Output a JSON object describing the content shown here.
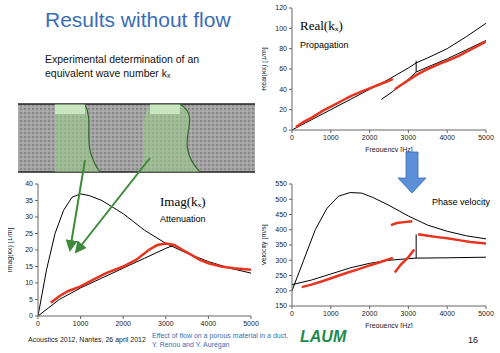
{
  "slide": {
    "title": "Results without flow",
    "subtitle": "Experimental determination of an equivalent wave number kₓ",
    "footer": {
      "event": "Acoustics 2012, Nantes, 26 april 2012",
      "talk": "Effect of flow on a porous material in a duct,",
      "authors": "Y. Renou and Y. Aurégan",
      "logo": "LAUM",
      "page": 16
    }
  },
  "chart_data": [
    {
      "type": "line",
      "title": "Real(kₓ)",
      "annotation": "Propagation",
      "x_label": "Frequency [Hz]",
      "y_label": "Real(kx) [1/m]",
      "xlim": [
        0,
        5000
      ],
      "xticks": [
        0,
        1000,
        2000,
        3000,
        4000,
        5000
      ],
      "ylim": [
        0,
        120
      ],
      "yticks": [
        0,
        20,
        40,
        60,
        80,
        100,
        120
      ],
      "series": [
        {
          "color": "#000000",
          "x": [
            0,
            500,
            1000,
            1500,
            2000,
            2500,
            3000,
            3200,
            3500,
            4000,
            4500,
            5000
          ],
          "values": [
            0,
            10,
            20,
            30,
            40,
            50,
            61,
            66,
            71,
            80,
            92,
            105
          ]
        },
        {
          "color": "#000000",
          "x": [
            2300,
            2600,
            3000,
            3200,
            3500,
            4000,
            4500,
            5000
          ],
          "values": [
            30,
            38,
            50,
            57,
            62,
            70,
            79,
            88
          ]
        },
        {
          "color": "#000000",
          "x": [
            3200,
            3200
          ],
          "values": [
            57,
            68
          ]
        },
        {
          "color": "#e8331f",
          "x": [
            100,
            300,
            500,
            800,
            1000,
            1300,
            1500,
            1800,
            2000,
            2200,
            2400,
            2600
          ],
          "values": [
            3,
            8,
            12,
            19,
            23,
            29,
            33,
            38,
            41,
            44,
            47,
            50
          ]
        },
        {
          "color": "#e8331f",
          "x": [
            2650,
            2800,
            3000,
            3200,
            3500,
            3800,
            4000,
            4300,
            4500,
            4800,
            5000
          ],
          "values": [
            40,
            44,
            49,
            54,
            60,
            65,
            68,
            73,
            77,
            83,
            87
          ]
        }
      ]
    },
    {
      "type": "line",
      "title": "Imag(kₓ)",
      "annotation": "Attenuation",
      "y_label": "Imag(kx) [1/m]",
      "xlim": [
        0,
        5000
      ],
      "xticks": [
        0,
        1000,
        2000,
        3000,
        4000,
        5000
      ],
      "ylim": [
        0,
        40
      ],
      "yticks": [
        0,
        5,
        10,
        15,
        20,
        25,
        30,
        35,
        40
      ],
      "series": [
        {
          "color": "#000000",
          "x": [
            0,
            200,
            400,
            600,
            800,
            1000,
            1200,
            1500,
            2000,
            2500,
            3000,
            3500,
            4000,
            4500,
            5000
          ],
          "values": [
            0,
            14,
            25,
            32,
            36,
            37,
            36.5,
            35,
            31,
            26,
            22,
            19,
            16.5,
            14.5,
            13
          ]
        },
        {
          "color": "#000000",
          "x": [
            0,
            500,
            1000,
            1500,
            2000,
            2500,
            3000,
            3200
          ],
          "values": [
            0,
            5,
            8.5,
            11.5,
            14.5,
            17.5,
            20.5,
            21.5
          ]
        },
        {
          "color": "#e8331f",
          "x": [
            300,
            500,
            700,
            1000,
            1300,
            1600,
            2000,
            2300,
            2600,
            2800,
            3000,
            3200,
            3400,
            3600,
            3800,
            4000,
            4300,
            4600,
            5000
          ],
          "values": [
            4,
            6,
            7.5,
            9,
            11,
            13,
            15,
            17,
            20,
            21.5,
            22,
            21.5,
            20,
            18.5,
            17,
            16,
            15,
            14.5,
            14
          ]
        }
      ]
    },
    {
      "type": "line",
      "title": "Phase velocity",
      "x_label": "Frequency [Hz]",
      "y_label": "Velocity [m/s]",
      "xlim": [
        0,
        5000
      ],
      "xticks": [
        0,
        1000,
        2000,
        3000,
        4000,
        5000
      ],
      "ylim": [
        150,
        550
      ],
      "yticks": [
        150,
        200,
        250,
        300,
        350,
        400,
        450,
        500,
        550
      ],
      "series": [
        {
          "color": "#000000",
          "x": [
            0,
            300,
            600,
            900,
            1200,
            1500,
            1800,
            2100,
            2500,
            3000,
            3500,
            4000,
            4500,
            5000
          ],
          "values": [
            200,
            300,
            400,
            470,
            510,
            522,
            520,
            505,
            480,
            445,
            415,
            395,
            380,
            370
          ]
        },
        {
          "color": "#000000",
          "x": [
            0,
            500,
            1000,
            1500,
            2000,
            2500,
            3000,
            3200,
            4000,
            5000
          ],
          "values": [
            220,
            235,
            255,
            275,
            290,
            300,
            305,
            307,
            308,
            310
          ]
        },
        {
          "color": "#000000",
          "x": [
            3200,
            3200
          ],
          "values": [
            307,
            385
          ]
        },
        {
          "color": "#e8331f",
          "x": [
            250,
            500,
            800,
            1100,
            1400,
            1700,
            2000,
            2300,
            2600
          ],
          "values": [
            212,
            220,
            232,
            245,
            258,
            270,
            283,
            295,
            308
          ]
        },
        {
          "color": "#e8331f",
          "x": [
            2650,
            2800,
            3000,
            3150
          ],
          "values": [
            260,
            285,
            310,
            335
          ]
        },
        {
          "color": "#e8331f",
          "x": [
            2550,
            2700,
            2900,
            3100
          ],
          "values": [
            415,
            422,
            425,
            428
          ]
        },
        {
          "color": "#e8331f",
          "x": [
            3250,
            3500,
            3800,
            4000,
            4300,
            4600,
            5000
          ],
          "values": [
            385,
            380,
            375,
            372,
            366,
            360,
            355
          ]
        }
      ]
    }
  ]
}
